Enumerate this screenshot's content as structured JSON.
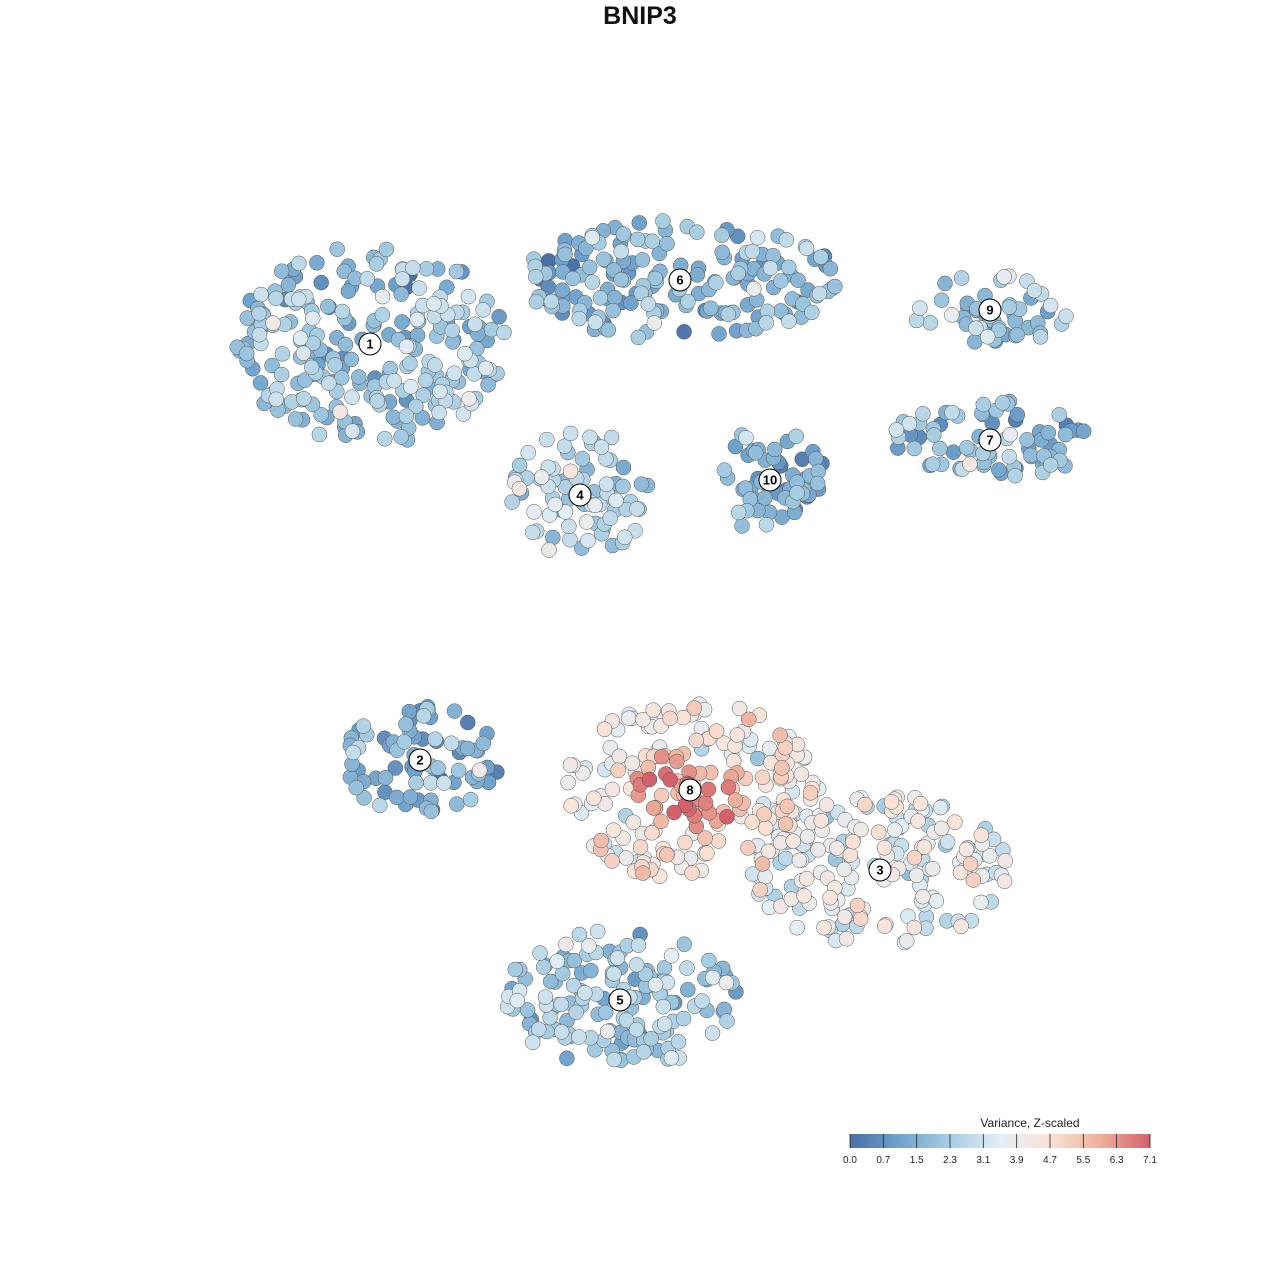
{
  "title": "BNIP3",
  "chart_data": {
    "type": "scatter",
    "title": "BNIP3",
    "xlabel": "",
    "ylabel": "",
    "grid": false,
    "color_scale": {
      "title": "Variance, Z-scaled",
      "min": 0.0,
      "max": 7.1,
      "ticks": [
        "0.0",
        "0.7",
        "1.5",
        "2.3",
        "3.1",
        "3.9",
        "4.7",
        "5.5",
        "6.3",
        "7.1"
      ],
      "colors": [
        "#4a6fa5",
        "#6fa2cc",
        "#a7cde2",
        "#e4eef5",
        "#fbe3d7",
        "#eeb09c",
        "#d4606a"
      ],
      "placement": "bottom-right"
    },
    "clusters": [
      {
        "label": "1",
        "center": [
          370,
          344
        ],
        "rx": 135,
        "ry": 100,
        "mean": 2.1
      },
      {
        "label": "2",
        "center": [
          420,
          760
        ],
        "rx": 80,
        "ry": 55,
        "mean": 1.6
      },
      {
        "label": "3",
        "center": [
          880,
          870
        ],
        "rx": 130,
        "ry": 75,
        "mean": 3.6
      },
      {
        "label": "4",
        "center": [
          580,
          495
        ],
        "rx": 70,
        "ry": 65,
        "mean": 2.8
      },
      {
        "label": "5",
        "center": [
          620,
          1000
        ],
        "rx": 120,
        "ry": 70,
        "mean": 2.3
      },
      {
        "label": "6",
        "center": [
          680,
          280
        ],
        "rx": 160,
        "ry": 60,
        "mean": 1.8
      },
      {
        "label": "7",
        "center": [
          990,
          440
        ],
        "rx": 100,
        "ry": 40,
        "mean": 2.0
      },
      {
        "label": "8",
        "center": [
          690,
          790
        ],
        "rx": 130,
        "ry": 90,
        "mean": 4.3
      },
      {
        "label": "9",
        "center": [
          990,
          310
        ],
        "rx": 80,
        "ry": 35,
        "mean": 1.9
      },
      {
        "label": "10",
        "center": [
          770,
          480
        ],
        "rx": 55,
        "ry": 55,
        "mean": 1.6
      }
    ]
  }
}
